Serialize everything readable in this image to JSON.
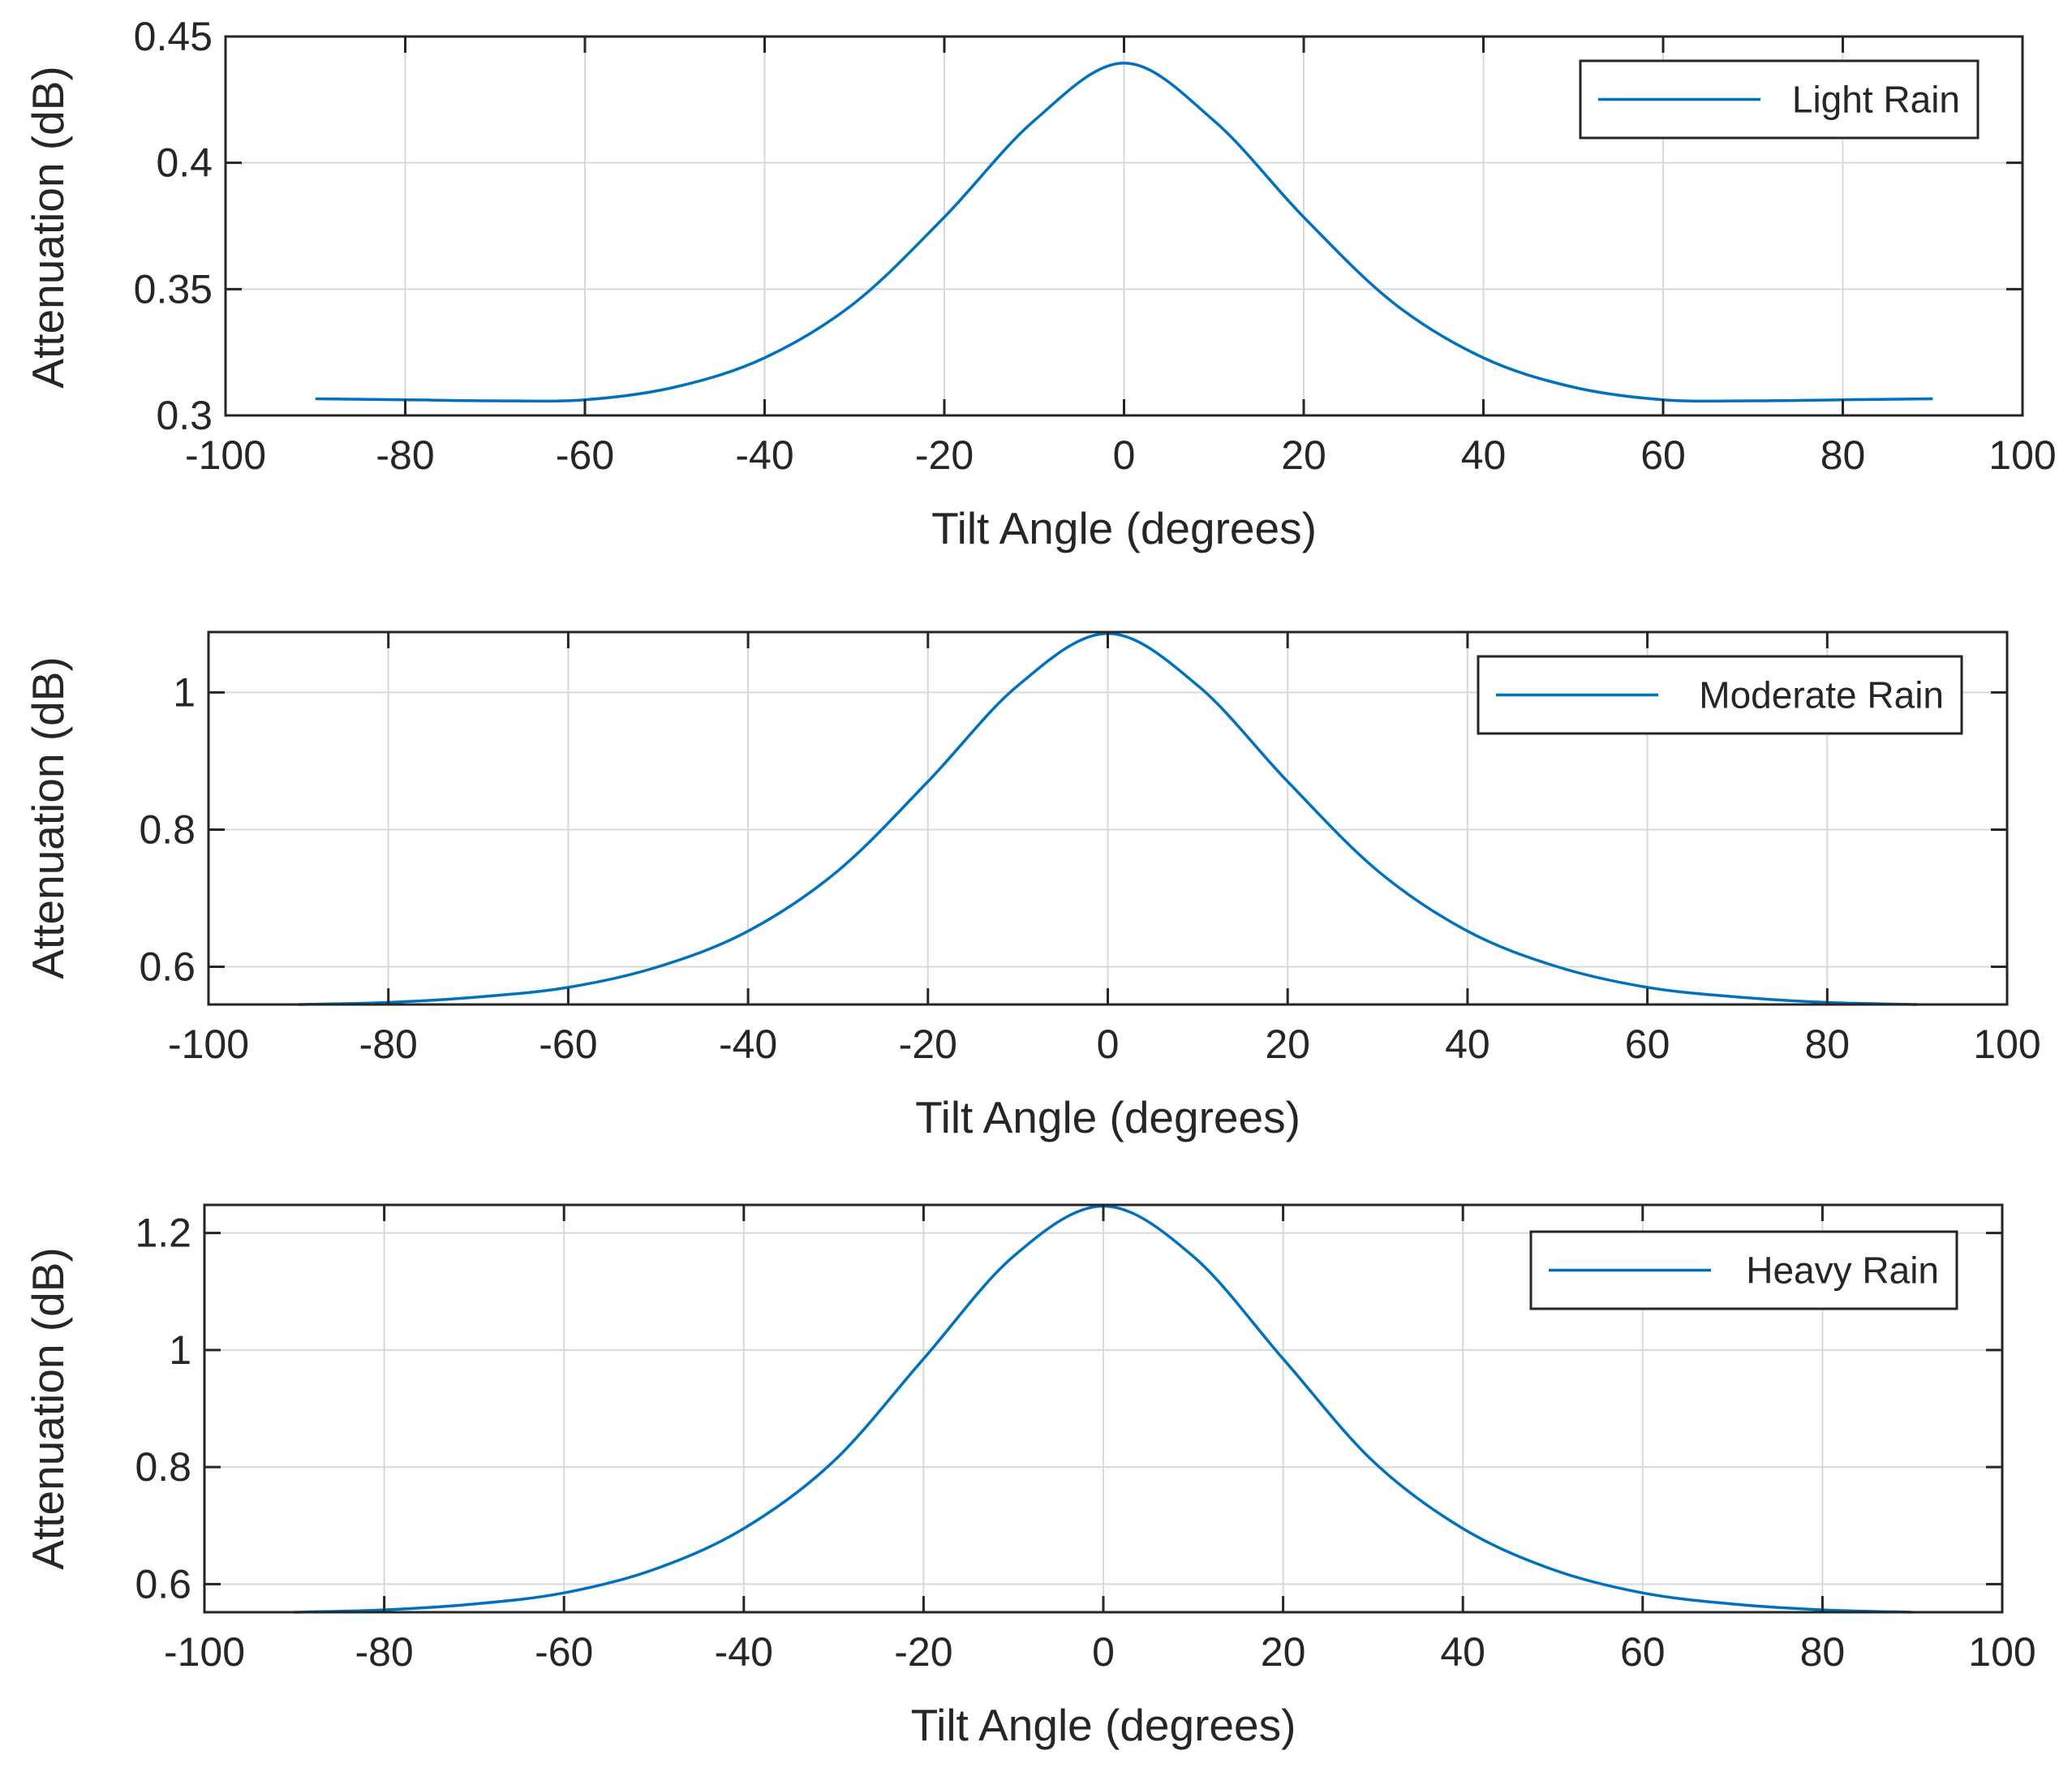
{
  "colors": {
    "series": "#0072BD",
    "axis": "#262626",
    "grid": "#D9D9D9",
    "background": "#FFFFFF"
  },
  "chart_data": [
    {
      "type": "line",
      "title": "",
      "xlabel": "Tilt Angle (degrees)",
      "ylabel": "Attenuation (dB)",
      "xlim": [
        -100,
        100
      ],
      "ylim": [
        0.3,
        0.45
      ],
      "xticks": [
        -100,
        -80,
        -60,
        -40,
        -20,
        0,
        20,
        40,
        60,
        80,
        100
      ],
      "xtick_labels": [
        "-100",
        "-80",
        "-60",
        "-40",
        "-20",
        "0",
        "20",
        "40",
        "60",
        "80",
        "100"
      ],
      "yticks": [
        0.3,
        0.35,
        0.4,
        0.45
      ],
      "ytick_labels": [
        "0.3",
        "0.35",
        "0.4",
        "0.45"
      ],
      "grid": true,
      "legend_position": "top-right",
      "series": [
        {
          "name": "Light Rain",
          "x": [
            -90,
            -80,
            -70,
            -60,
            -50,
            -40,
            -30,
            -20,
            -10,
            0,
            10,
            20,
            30,
            40,
            50,
            60,
            70,
            80,
            90
          ],
          "values": [
            0.3066,
            0.3062,
            0.3058,
            0.3062,
            0.3112,
            0.3228,
            0.3445,
            0.3785,
            0.4167,
            0.4395,
            0.4167,
            0.3785,
            0.3445,
            0.3228,
            0.3112,
            0.3062,
            0.3058,
            0.3062,
            0.3066
          ]
        }
      ]
    },
    {
      "type": "line",
      "title": "",
      "xlabel": "Tilt Angle (degrees)",
      "ylabel": "Attenuation (dB)",
      "xlim": [
        -100,
        100
      ],
      "ylim": [
        0.545,
        1.088
      ],
      "xticks": [
        -100,
        -80,
        -60,
        -40,
        -20,
        0,
        20,
        40,
        60,
        80,
        100
      ],
      "xtick_labels": [
        "-100",
        "-80",
        "-60",
        "-40",
        "-20",
        "0",
        "20",
        "40",
        "60",
        "80",
        "100"
      ],
      "yticks": [
        0.6,
        0.8,
        1.0
      ],
      "ytick_labels": [
        "0.6",
        "0.8",
        "1"
      ],
      "grid": true,
      "legend_position": "top-right",
      "series": [
        {
          "name": "Moderate Rain",
          "x": [
            -90,
            -80,
            -70,
            -60,
            -50,
            -40,
            -30,
            -20,
            -10,
            0,
            10,
            20,
            30,
            40,
            50,
            60,
            70,
            80,
            90
          ],
          "values": [
            0.545,
            0.548,
            0.556,
            0.57,
            0.6,
            0.652,
            0.74,
            0.87,
            1.01,
            1.086,
            1.01,
            0.87,
            0.74,
            0.652,
            0.6,
            0.57,
            0.556,
            0.548,
            0.545
          ]
        }
      ]
    },
    {
      "type": "line",
      "title": "",
      "xlabel": "Tilt Angle (degrees)",
      "ylabel": "Attenuation (dB)",
      "xlim": [
        -100,
        100
      ],
      "ylim": [
        0.552,
        1.248
      ],
      "xticks": [
        -100,
        -80,
        -60,
        -40,
        -20,
        0,
        20,
        40,
        60,
        80,
        100
      ],
      "xtick_labels": [
        "-100",
        "-80",
        "-60",
        "-40",
        "-20",
        "0",
        "20",
        "40",
        "60",
        "80",
        "100"
      ],
      "yticks": [
        0.6,
        0.8,
        1.0,
        1.2
      ],
      "ytick_labels": [
        "0.6",
        "0.8",
        "1",
        "1.2"
      ],
      "grid": true,
      "legend_position": "top-right",
      "series": [
        {
          "name": "Heavy Rain",
          "x": [
            -90,
            -80,
            -70,
            -60,
            -50,
            -40,
            -30,
            -20,
            -10,
            0,
            10,
            20,
            30,
            40,
            50,
            60,
            70,
            80,
            90
          ],
          "values": [
            0.552,
            0.556,
            0.566,
            0.585,
            0.625,
            0.695,
            0.81,
            0.985,
            1.16,
            1.246,
            1.16,
            0.985,
            0.81,
            0.695,
            0.625,
            0.585,
            0.566,
            0.556,
            0.552
          ]
        }
      ]
    }
  ]
}
